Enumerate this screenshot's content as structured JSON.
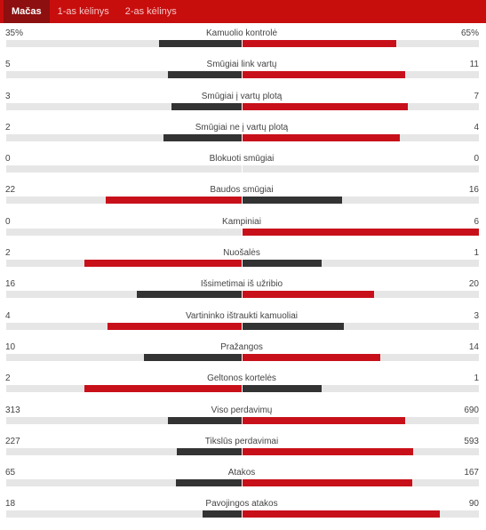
{
  "tabs": [
    {
      "label": "Mačas",
      "active": true
    },
    {
      "label": "1-as kėlinys",
      "active": false
    },
    {
      "label": "2-as kėlinys",
      "active": false
    }
  ],
  "colors": {
    "tab_bar": "#c80d0d",
    "tab_active": "#8d0f0f",
    "bar_red": "#c8101a",
    "bar_dark": "#333333",
    "track": "#e6e6e6"
  },
  "stats": [
    {
      "label": "Kamuolio kontrolė",
      "home": "35%",
      "away": "65%",
      "home_share": 0.35,
      "away_share": 0.65,
      "home_leads": false
    },
    {
      "label": "Smūgiai link vartų",
      "home": "5",
      "away": "11",
      "home_share": 0.3125,
      "away_share": 0.6875,
      "home_leads": false
    },
    {
      "label": "Smūgiai į vartų plotą",
      "home": "3",
      "away": "7",
      "home_share": 0.3,
      "away_share": 0.7,
      "home_leads": false
    },
    {
      "label": "Smūgiai ne į vartų plotą",
      "home": "2",
      "away": "4",
      "home_share": 0.3333,
      "away_share": 0.6667,
      "home_leads": false
    },
    {
      "label": "Blokuoti smūgiai",
      "home": "0",
      "away": "0",
      "home_share": 0,
      "away_share": 0,
      "home_leads": false
    },
    {
      "label": "Baudos smūgiai",
      "home": "22",
      "away": "16",
      "home_share": 0.5789,
      "away_share": 0.4211,
      "home_leads": true
    },
    {
      "label": "Kampiniai",
      "home": "0",
      "away": "6",
      "home_share": 0,
      "away_share": 1,
      "home_leads": false
    },
    {
      "label": "Nuošalės",
      "home": "2",
      "away": "1",
      "home_share": 0.6667,
      "away_share": 0.3333,
      "home_leads": true
    },
    {
      "label": "Išsimetimai iš užribio",
      "home": "16",
      "away": "20",
      "home_share": 0.4444,
      "away_share": 0.5556,
      "home_leads": false
    },
    {
      "label": "Vartininko ištraukti kamuoliai",
      "home": "4",
      "away": "3",
      "home_share": 0.5714,
      "away_share": 0.4286,
      "home_leads": true
    },
    {
      "label": "Pražangos",
      "home": "10",
      "away": "14",
      "home_share": 0.4167,
      "away_share": 0.5833,
      "home_leads": false
    },
    {
      "label": "Geltonos kortelės",
      "home": "2",
      "away": "1",
      "home_share": 0.6667,
      "away_share": 0.3333,
      "home_leads": true
    },
    {
      "label": "Viso perdavimų",
      "home": "313",
      "away": "690",
      "home_share": 0.3121,
      "away_share": 0.6879,
      "home_leads": false
    },
    {
      "label": "Tikslūs perdavimai",
      "home": "227",
      "away": "593",
      "home_share": 0.2768,
      "away_share": 0.7232,
      "home_leads": false
    },
    {
      "label": "Atakos",
      "home": "65",
      "away": "167",
      "home_share": 0.2802,
      "away_share": 0.7198,
      "home_leads": false
    },
    {
      "label": "Pavojingos atakos",
      "home": "18",
      "away": "90",
      "home_share": 0.1667,
      "away_share": 0.8333,
      "home_leads": false
    }
  ]
}
